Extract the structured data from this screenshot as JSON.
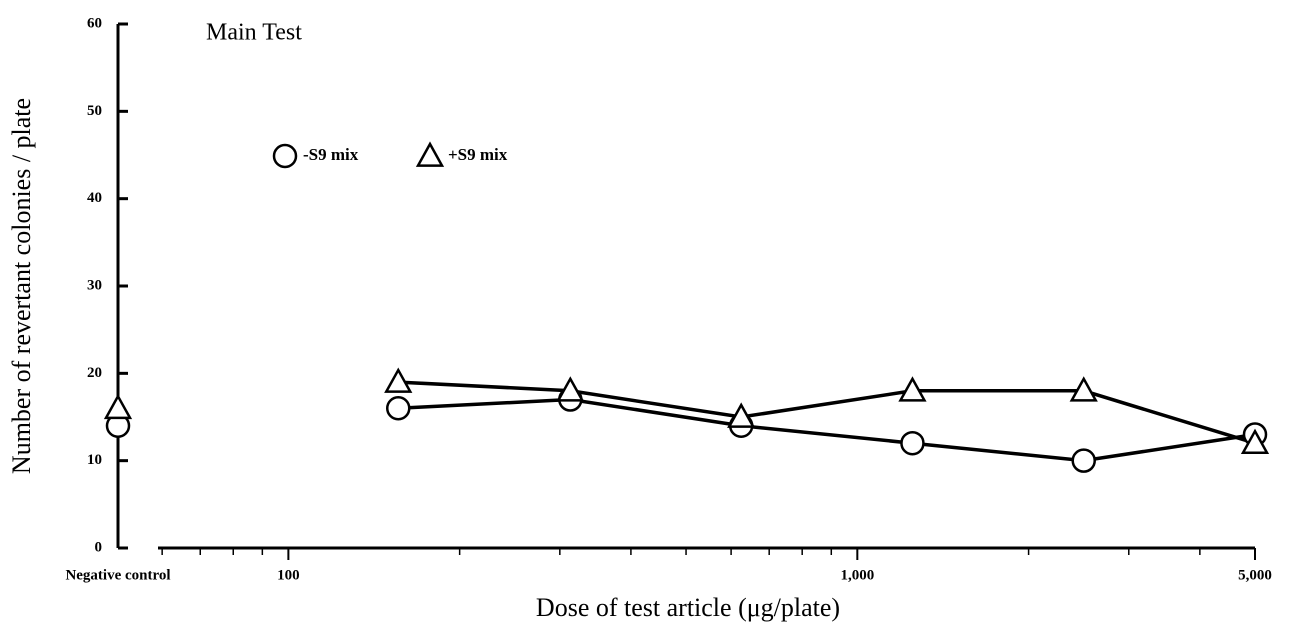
{
  "chart_data": {
    "type": "line",
    "title": "Main Test",
    "x_label": "Dose of test article (μg/plate)",
    "y_label": "Number of revertant colonies / plate",
    "control_label": "Negative control",
    "x": [
      156,
      313,
      625,
      1250,
      2500,
      5000
    ],
    "series": [
      {
        "name": "-S9 mix",
        "marker": "circle",
        "color": "#000000",
        "control": 14,
        "values": [
          16,
          17,
          14,
          12,
          10,
          13
        ]
      },
      {
        "name": "+S9 mix",
        "marker": "triangle",
        "color": "#000000",
        "control": 16,
        "values": [
          19,
          18,
          15,
          18,
          18,
          12
        ]
      }
    ],
    "xscale": "log",
    "xlim": [
      59,
      5000
    ],
    "xticks": [
      100,
      {
        "value": 1000,
        "label": "1,000"
      },
      {
        "value": 5000,
        "label": "5,000"
      }
    ],
    "xminor_ticks": [
      60,
      70,
      80,
      90,
      200,
      300,
      400,
      500,
      600,
      700,
      800,
      900,
      2000,
      3000,
      4000
    ],
    "ylim": [
      0,
      60
    ],
    "yticks": [
      0,
      10,
      20,
      30,
      40,
      50,
      60
    ]
  }
}
